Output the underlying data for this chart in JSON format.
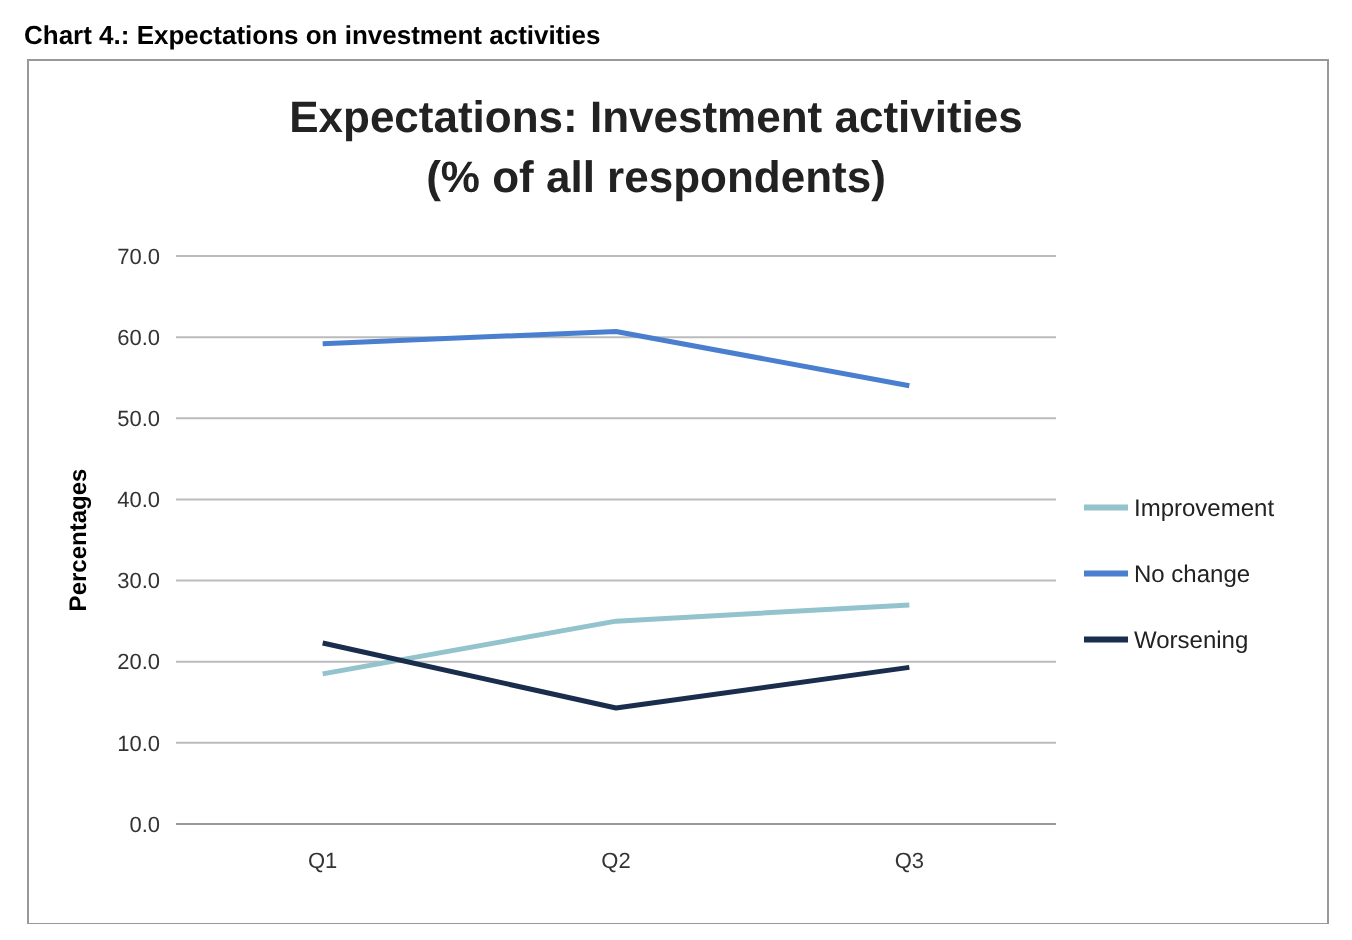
{
  "chart_data": {
    "type": "line",
    "title": "Expectations: Investment activities\n(% of all respondents)",
    "ylabel": "Percentages",
    "annotations": [
      "Chart 4.: Expectations on investment activities"
    ],
    "categories": [
      "Q1",
      "Q2",
      "Q3"
    ],
    "series": [
      {
        "name": "Improvement",
        "color": "#93c3cc",
        "values": [
          18.5,
          25,
          27
        ]
      },
      {
        "name": "No change",
        "color": "#4a7fd0",
        "values": [
          59.2,
          60.7,
          54
        ]
      },
      {
        "name": "Worsening",
        "color": "#1a2d4d",
        "values": [
          22.3,
          14.3,
          19.3
        ]
      }
    ],
    "ylim": [
      0,
      70
    ],
    "yticks": [
      {
        "value": 0,
        "label": "0.0"
      },
      {
        "value": 10,
        "label": "10.0"
      },
      {
        "value": 20,
        "label": "20.0"
      },
      {
        "value": 30,
        "label": "30.0"
      },
      {
        "value": 40,
        "label": "40.0"
      },
      {
        "value": 50,
        "label": "50.0"
      },
      {
        "value": 60,
        "label": "60.0"
      },
      {
        "value": 70,
        "label": "70.0"
      }
    ],
    "grid": "y",
    "legend": "right",
    "marker": "none",
    "line_style": "solid"
  }
}
